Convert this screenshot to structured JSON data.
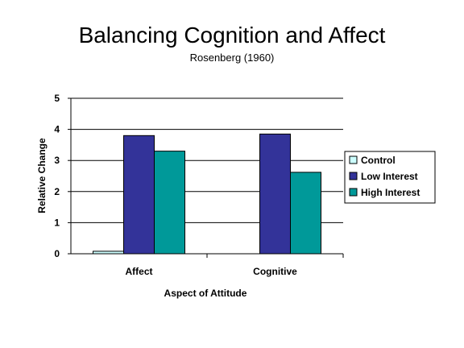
{
  "chart_data": {
    "type": "bar",
    "title": "Balancing Cognition and Affect",
    "subtitle": "Rosenberg (1960)",
    "xlabel": "Aspect of Attitude",
    "ylabel": "Relative Change",
    "categories": [
      "Affect",
      "Cognitive"
    ],
    "series": [
      {
        "name": "Control",
        "values": [
          0.08,
          0
        ],
        "color": "#ccffff"
      },
      {
        "name": "Low Interest",
        "values": [
          3.8,
          3.85
        ],
        "color": "#333399"
      },
      {
        "name": "High Interest",
        "values": [
          3.3,
          2.62
        ],
        "color": "#009999"
      }
    ],
    "ylim": [
      0,
      5
    ],
    "yticks": [
      0,
      1,
      2,
      3,
      4,
      5
    ],
    "grid": true,
    "legend": "right"
  }
}
